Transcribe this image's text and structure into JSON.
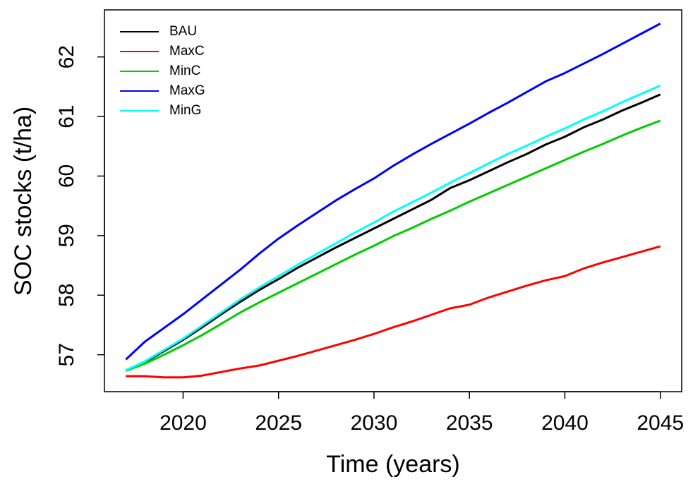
{
  "chart_data": {
    "type": "line",
    "x_label": "Time (years)",
    "y_label": "SOC stocks (t/ha)",
    "x": [
      2017,
      2018,
      2019,
      2020,
      2021,
      2022,
      2023,
      2024,
      2025,
      2026,
      2027,
      2028,
      2029,
      2030,
      2031,
      2032,
      2033,
      2034,
      2035,
      2036,
      2037,
      2038,
      2039,
      2040,
      2041,
      2042,
      2043,
      2044,
      2045
    ],
    "series": [
      {
        "name": "BAU",
        "color": "#000000",
        "values": [
          56.74,
          56.88,
          57.06,
          57.25,
          57.46,
          57.68,
          57.89,
          58.09,
          58.27,
          58.46,
          58.63,
          58.8,
          58.96,
          59.12,
          59.28,
          59.44,
          59.6,
          59.8,
          59.93,
          60.08,
          60.23,
          60.37,
          60.53,
          60.66,
          60.82,
          60.95,
          61.1,
          61.23,
          61.37
        ]
      },
      {
        "name": "MaxC",
        "color": "#ff0000",
        "values": [
          56.64,
          56.64,
          56.62,
          56.62,
          56.65,
          56.71,
          56.77,
          56.82,
          56.9,
          56.98,
          57.07,
          57.16,
          57.25,
          57.35,
          57.46,
          57.56,
          57.67,
          57.78,
          57.84,
          57.96,
          58.06,
          58.16,
          58.25,
          58.32,
          58.45,
          58.55,
          58.64,
          58.73,
          58.82
        ]
      },
      {
        "name": "MinC",
        "color": "#00cd00",
        "values": [
          56.73,
          56.85,
          57.0,
          57.16,
          57.33,
          57.52,
          57.71,
          57.88,
          58.04,
          58.2,
          58.36,
          58.52,
          58.68,
          58.83,
          58.99,
          59.13,
          59.28,
          59.42,
          59.57,
          59.71,
          59.85,
          59.99,
          60.13,
          60.27,
          60.41,
          60.54,
          60.68,
          60.81,
          60.93
        ]
      },
      {
        "name": "MaxG",
        "color": "#0000ff",
        "values": [
          56.92,
          57.22,
          57.45,
          57.68,
          57.93,
          58.18,
          58.43,
          58.7,
          58.95,
          59.17,
          59.38,
          59.59,
          59.78,
          59.96,
          60.17,
          60.36,
          60.54,
          60.71,
          60.88,
          61.06,
          61.23,
          61.41,
          61.59,
          61.73,
          61.89,
          62.05,
          62.22,
          62.39,
          62.56
        ]
      },
      {
        "name": "MinG",
        "color": "#00ffff",
        "values": [
          56.74,
          56.89,
          57.08,
          57.27,
          57.49,
          57.71,
          57.93,
          58.13,
          58.32,
          58.51,
          58.69,
          58.87,
          59.05,
          59.22,
          59.4,
          59.56,
          59.72,
          59.89,
          60.05,
          60.21,
          60.37,
          60.51,
          60.66,
          60.8,
          60.95,
          61.09,
          61.24,
          61.38,
          61.52
        ]
      }
    ],
    "xlim": [
      2015.88,
      2046.12
    ],
    "ylim": [
      56.38,
      62.79
    ],
    "xticks": [
      2020,
      2025,
      2030,
      2035,
      2040,
      2045
    ],
    "yticks": [
      57,
      58,
      59,
      60,
      61,
      62
    ],
    "legend": "top-left"
  }
}
